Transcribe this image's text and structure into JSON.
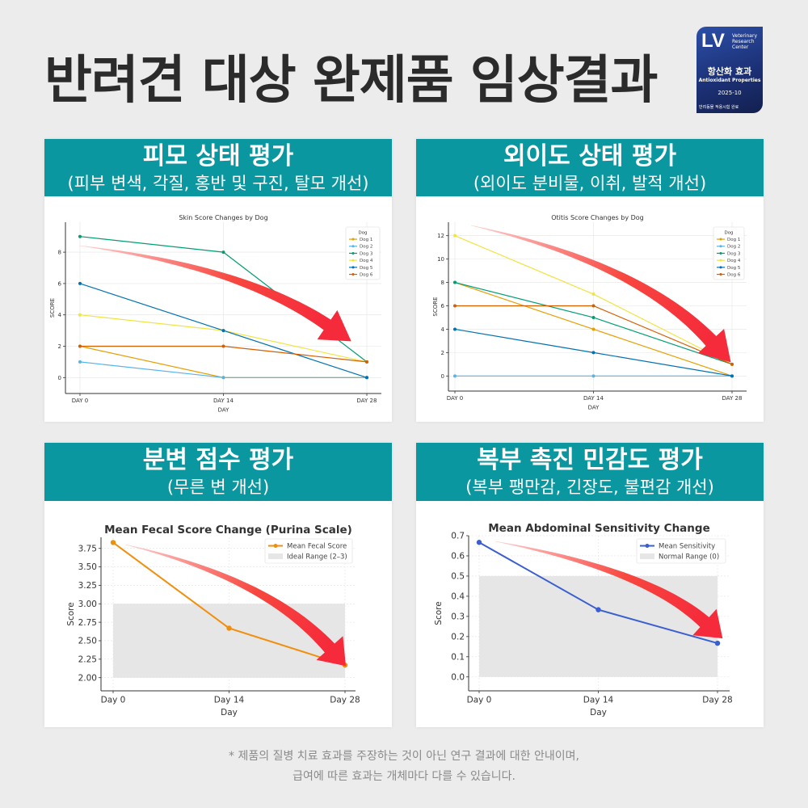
{
  "header": {
    "title": "반려견 대상 완제품 임상결과"
  },
  "badge": {
    "logo": "LV",
    "org": "Veterinary Research Center",
    "ko_label": "항산화 효과",
    "en_label": "Antioxidant Properties",
    "date": "2025-10",
    "footnote": "반려동물 적용시험 완료"
  },
  "panels": [
    {
      "title": "피모 상태 평가",
      "subtitle": "(피부 변색, 각질, 홍반 및 구진, 탈모 개선)"
    },
    {
      "title": "외이도 상태 평가",
      "subtitle": "(외이도 분비물, 이취, 발적 개선)"
    },
    {
      "title": "분변 점수 평가",
      "subtitle": "(무른 변 개선)"
    },
    {
      "title": "복부 촉진 민감도 평가",
      "subtitle": "(복부 팽만감, 긴장도, 불편감 개선)"
    }
  ],
  "chart_data": [
    {
      "type": "line",
      "title": "Skin Score Changes by Dog",
      "xlabel": "DAY",
      "ylabel": "SCORE",
      "categories": [
        "DAY 0",
        "DAY 14",
        "DAY 28"
      ],
      "yticks": [
        "0",
        "2",
        "4",
        "6",
        "8"
      ],
      "ylim": [
        -0.5,
        9.5
      ],
      "legend_title": "Dog",
      "legend": "top-right",
      "grid": true,
      "series": [
        {
          "name": "Dog 1",
          "values": [
            2,
            0,
            0
          ],
          "color": "#e69f00"
        },
        {
          "name": "Dog 2",
          "values": [
            1,
            0,
            0
          ],
          "color": "#56b4e9"
        },
        {
          "name": "Dog 3",
          "values": [
            9,
            8,
            1
          ],
          "color": "#009e73"
        },
        {
          "name": "Dog 4",
          "values": [
            4,
            3,
            1
          ],
          "color": "#f0e442"
        },
        {
          "name": "Dog 5",
          "values": [
            6,
            3,
            0
          ],
          "color": "#0072b2"
        },
        {
          "name": "Dog 6",
          "values": [
            2,
            2,
            1
          ],
          "color": "#d55e00"
        }
      ]
    },
    {
      "type": "line",
      "title": "Otitis Score Changes by Dog",
      "xlabel": "DAY",
      "ylabel": "SCORE",
      "categories": [
        "DAY 0",
        "DAY 14",
        "DAY 28"
      ],
      "yticks": [
        "0",
        "2",
        "4",
        "6",
        "8",
        "10",
        "12"
      ],
      "ylim": [
        -0.6,
        12.6
      ],
      "legend_title": "Dog",
      "legend": "top-right",
      "grid": true,
      "series": [
        {
          "name": "Dog 1",
          "values": [
            8,
            4,
            0
          ],
          "color": "#e69f00"
        },
        {
          "name": "Dog 2",
          "values": [
            0,
            0,
            0
          ],
          "color": "#56b4e9"
        },
        {
          "name": "Dog 3",
          "values": [
            8,
            5,
            1
          ],
          "color": "#009e73"
        },
        {
          "name": "Dog 4",
          "values": [
            12,
            7,
            1
          ],
          "color": "#f0e442"
        },
        {
          "name": "Dog 5",
          "values": [
            4,
            2,
            0
          ],
          "color": "#0072b2"
        },
        {
          "name": "Dog 6",
          "values": [
            6,
            6,
            1
          ],
          "color": "#d55e00"
        }
      ]
    },
    {
      "type": "line",
      "title": "Mean Fecal Score Change (Purina Scale)",
      "xlabel": "Day",
      "ylabel": "Score",
      "categories": [
        "Day 0",
        "Day 14",
        "Day 28"
      ],
      "yticks": [
        "2.00",
        "2.25",
        "2.50",
        "2.75",
        "3.00",
        "3.25",
        "3.50",
        "3.75"
      ],
      "ylim": [
        1.92,
        3.9
      ],
      "legend": "top-right",
      "grid": true,
      "band": {
        "name": "Ideal Range (2–3)",
        "range": [
          2,
          3
        ],
        "color": "#e6e6e6"
      },
      "series": [
        {
          "name": "Mean Fecal Score",
          "values": [
            3.83,
            2.67,
            2.17
          ],
          "color": "#f28e0c"
        }
      ]
    },
    {
      "type": "line",
      "title": "Mean Abdominal Sensitivity Change",
      "xlabel": "Day",
      "ylabel": "Score",
      "categories": [
        "Day 0",
        "Day 14",
        "Day 28"
      ],
      "yticks": [
        "0.0",
        "0.1",
        "0.2",
        "0.3",
        "0.4",
        "0.5",
        "0.6",
        "0.7"
      ],
      "ylim": [
        -0.033,
        0.7
      ],
      "legend": "top-right",
      "grid": true,
      "band": {
        "name": "Normal Range (0)",
        "range": [
          0,
          0.5
        ],
        "color": "#e6e6e6"
      },
      "series": [
        {
          "name": "Mean Sensitivity",
          "values": [
            0.667,
            0.333,
            0.167
          ],
          "color": "#3a5fd0"
        }
      ]
    }
  ],
  "footer": {
    "line1": "* 제품의 질병 치료 효과를 주장하는 것이 아닌 연구 결과에 대한 안내이며,",
    "line2": "급여에 따른 효과는 개체마다 다를 수 있습니다."
  },
  "colors": {
    "header_bar": "#0a97a0",
    "arrow": "#f52a3a",
    "badge": "#1b2f73"
  }
}
